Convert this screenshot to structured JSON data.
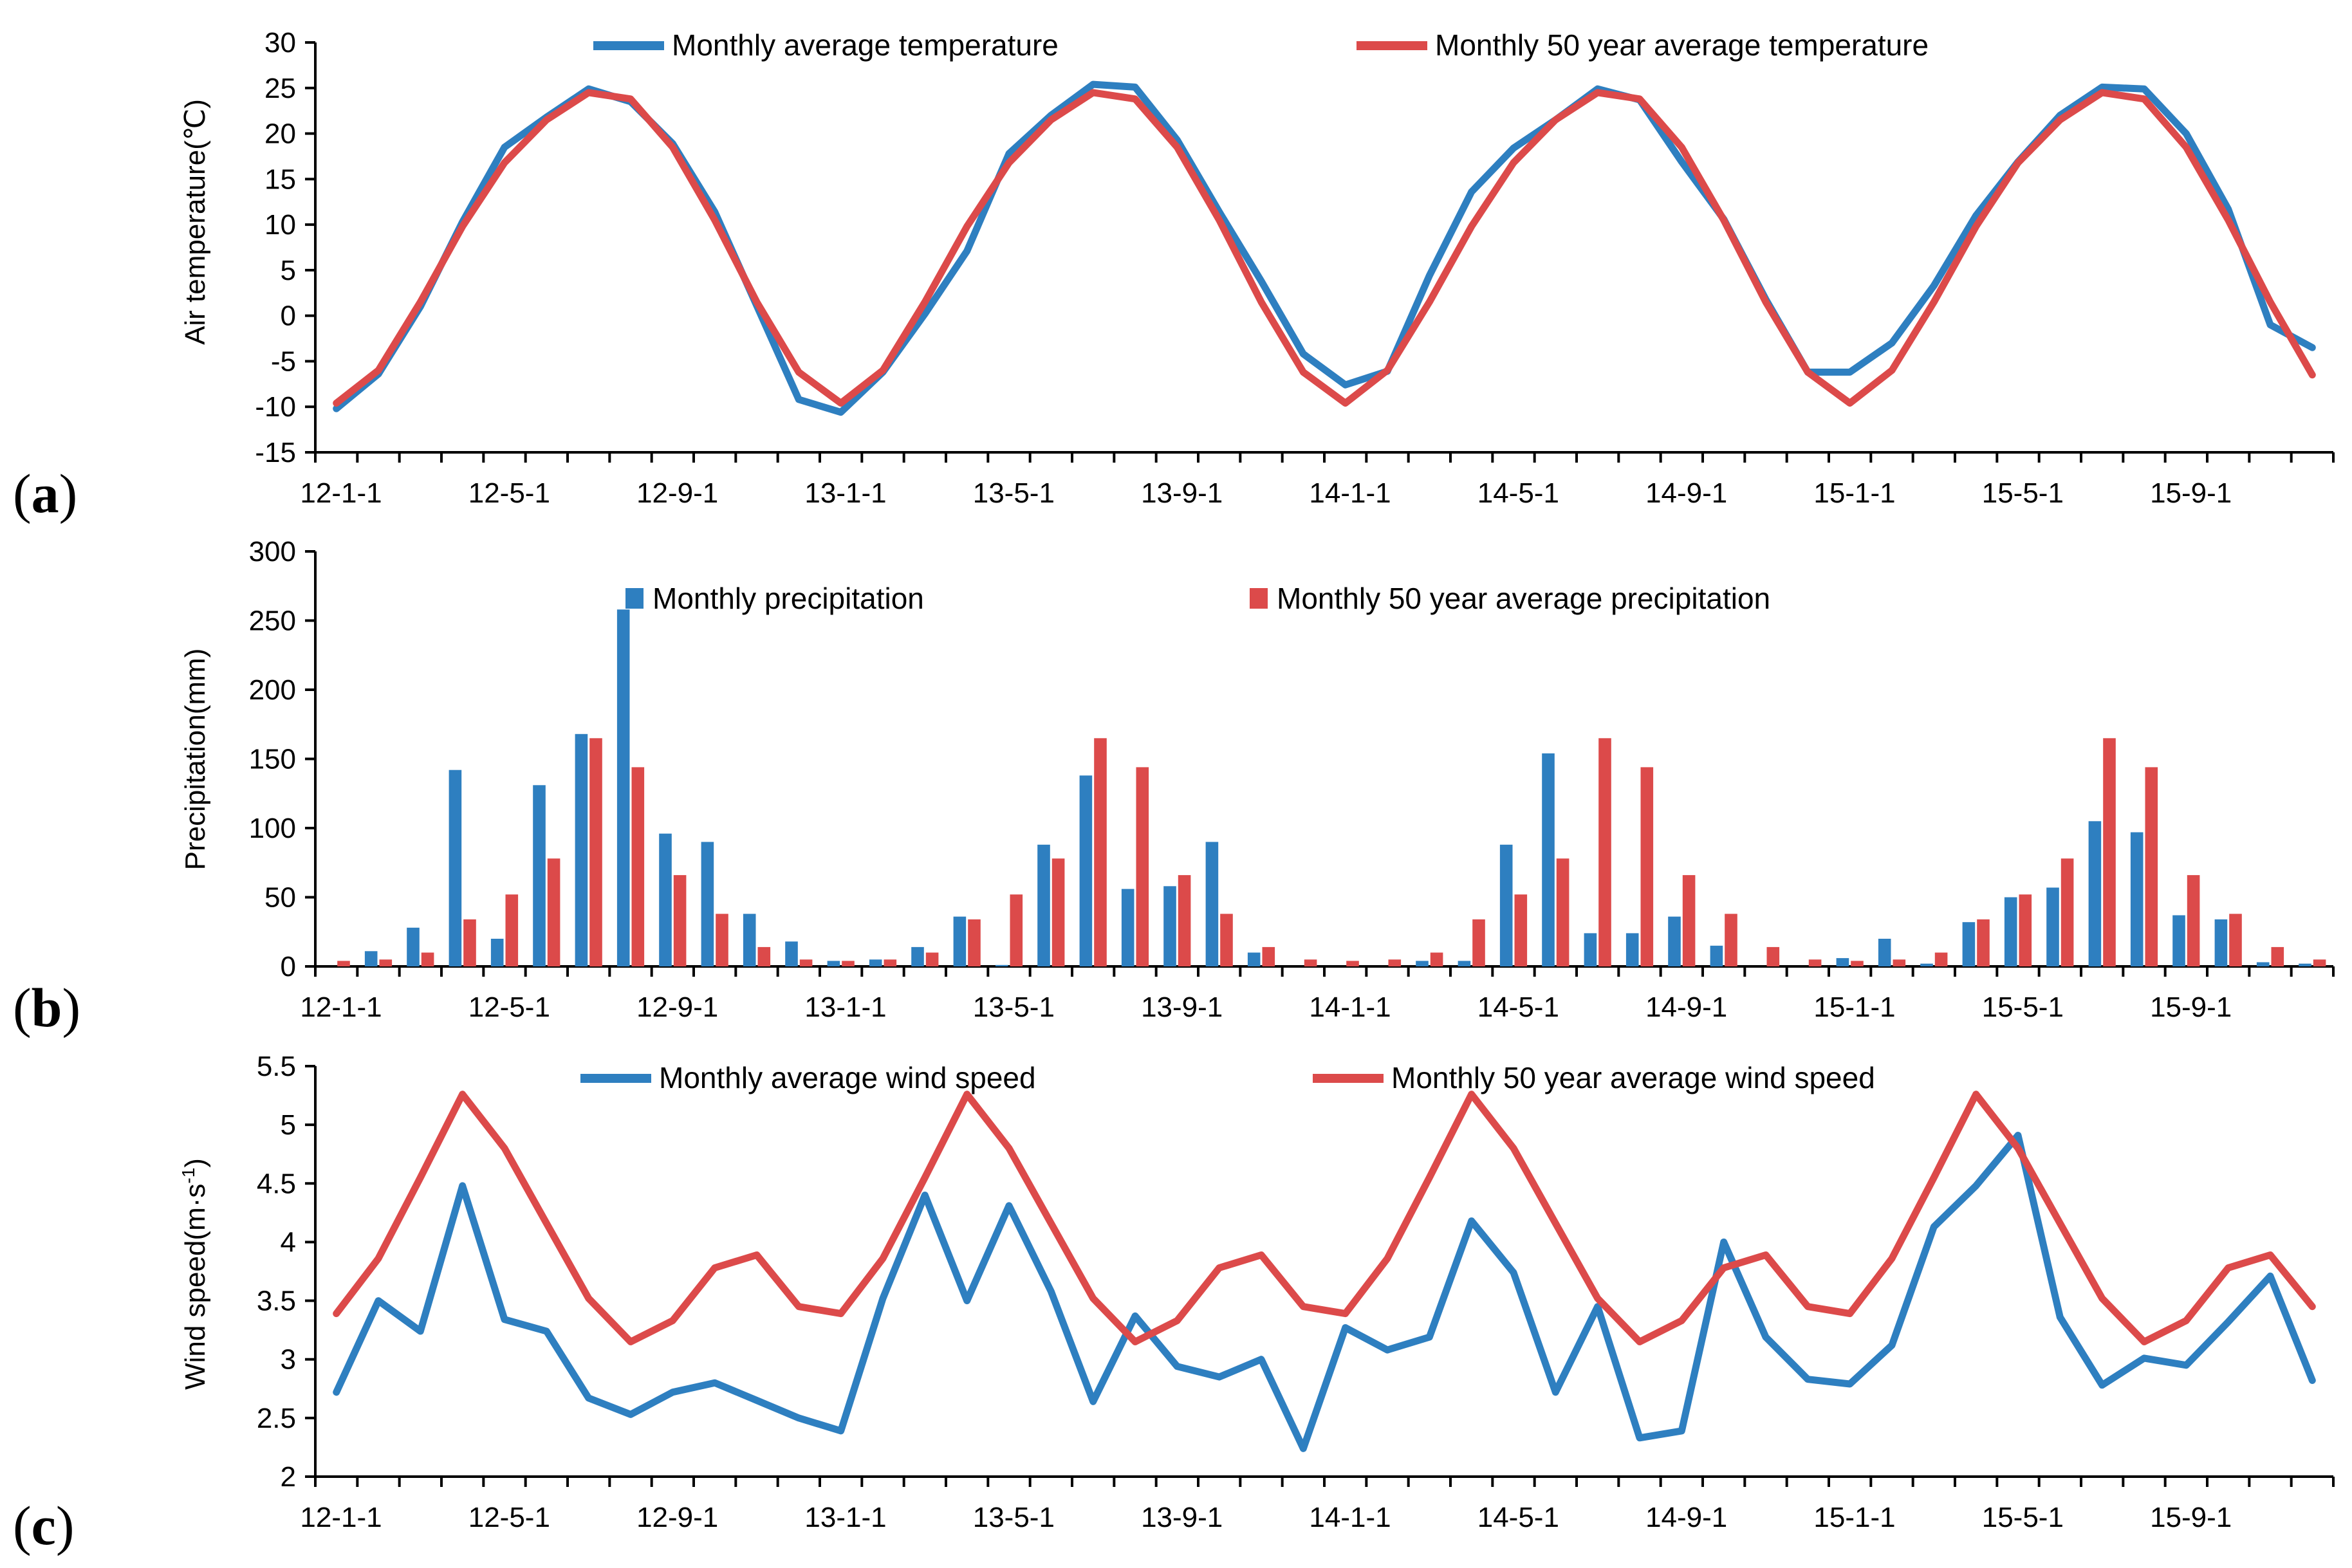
{
  "panels": [
    {
      "label_open": "(",
      "label_letter": "a",
      "label_close": ")"
    },
    {
      "label_open": "(",
      "label_letter": "b",
      "label_close": ")"
    },
    {
      "label_open": "(",
      "label_letter": "c",
      "label_close": ")"
    }
  ],
  "colors": {
    "blue": "#2e7fc0",
    "red": "#dc4a4a",
    "axis": "#000000"
  },
  "chart_data": [
    {
      "type": "line",
      "ylabel": "Air temperature(℃)",
      "xlabel": "",
      "ylim": [
        -15,
        30
      ],
      "yticks": [
        30,
        25,
        20,
        15,
        10,
        5,
        0,
        -5,
        -10,
        -15
      ],
      "legend_position": "top",
      "xtick_labels": [
        "12-1-1",
        "12-5-1",
        "12-9-1",
        "13-1-1",
        "13-5-1",
        "13-9-1",
        "14-1-1",
        "14-5-1",
        "14-9-1",
        "15-1-1",
        "15-5-1",
        "15-9-1"
      ],
      "series": [
        {
          "name": "Monthly average temperature",
          "color": "blue",
          "values": [
            -10.2,
            -6.4,
            1.0,
            10.3,
            18.5,
            21.8,
            24.9,
            23.5,
            18.9,
            11.4,
            1.1,
            -9.2,
            -10.6,
            -6.2,
            0.2,
            7.1,
            17.8,
            22.0,
            25.4,
            25.1,
            19.3,
            11.4,
            3.8,
            -4.2,
            -7.6,
            -6.1,
            4.4,
            13.6,
            18.4,
            21.5,
            24.9,
            23.7,
            16.9,
            10.6,
            1.8,
            -6.2,
            -6.2,
            -3.0,
            3.3,
            11.0,
            16.9,
            22.0,
            25.1,
            24.9,
            20.0,
            11.7,
            -1.0,
            -3.5
          ]
        },
        {
          "name": "Monthly 50 year average temperature",
          "color": "red",
          "values": [
            -9.6,
            -6.0,
            1.5,
            9.8,
            16.8,
            21.5,
            24.5,
            23.8,
            18.5,
            10.5,
            1.5,
            -6.2,
            -9.6,
            -6.0,
            1.5,
            9.8,
            16.8,
            21.5,
            24.5,
            23.8,
            18.5,
            10.5,
            1.5,
            -6.2,
            -9.6,
            -6.0,
            1.5,
            9.8,
            16.8,
            21.5,
            24.5,
            23.8,
            18.5,
            10.5,
            1.5,
            -6.2,
            -9.6,
            -6.0,
            1.5,
            9.8,
            16.8,
            21.5,
            24.5,
            23.8,
            18.5,
            10.5,
            1.5,
            -6.5
          ]
        }
      ]
    },
    {
      "type": "bar",
      "ylabel": "Precipitation(mm)",
      "xlabel": "",
      "ylim": [
        0,
        300
      ],
      "yticks": [
        300,
        250,
        200,
        150,
        100,
        50,
        0
      ],
      "legend_position": "top",
      "xtick_labels": [
        "12-1-1",
        "12-5-1",
        "12-9-1",
        "13-1-1",
        "13-5-1",
        "13-9-1",
        "14-1-1",
        "14-5-1",
        "14-9-1",
        "15-1-1",
        "15-5-1",
        "15-9-1"
      ],
      "series": [
        {
          "name": "Monthly precipitation",
          "color": "blue",
          "values": [
            0,
            11,
            28,
            142,
            20,
            131,
            168,
            258,
            96,
            90,
            38,
            18,
            4,
            5,
            14,
            36,
            1,
            88,
            138,
            56,
            58,
            90,
            10,
            0,
            0,
            0,
            4,
            4,
            88,
            154,
            24,
            24,
            36,
            15,
            0,
            0,
            6,
            20,
            2,
            32,
            50,
            57,
            105,
            97,
            37,
            34,
            3,
            2
          ]
        },
        {
          "name": "Monthly 50 year average precipitation",
          "color": "red",
          "values": [
            4,
            5,
            10,
            34,
            52,
            78,
            165,
            144,
            66,
            38,
            14,
            5,
            4,
            5,
            10,
            34,
            52,
            78,
            165,
            144,
            66,
            38,
            14,
            5,
            4,
            5,
            10,
            34,
            52,
            78,
            165,
            144,
            66,
            38,
            14,
            5,
            4,
            5,
            10,
            34,
            52,
            78,
            165,
            144,
            66,
            38,
            14,
            5
          ]
        }
      ]
    },
    {
      "type": "line",
      "ylabel": "Wind speed(m·s",
      "ylabel_sup": "-1",
      "ylabel_close": ")",
      "xlabel": "",
      "ylim": [
        2,
        5.5
      ],
      "yticks": [
        "5.5",
        "5",
        "4.5",
        "4",
        "3.5",
        "3",
        "2.5",
        "2"
      ],
      "legend_position": "top",
      "xtick_labels": [
        "12-1-1",
        "12-5-1",
        "12-9-1",
        "13-1-1",
        "13-5-1",
        "13-9-1",
        "14-1-1",
        "14-5-1",
        "14-9-1",
        "15-1-1",
        "15-5-1",
        "15-9-1"
      ],
      "series": [
        {
          "name": "Monthly average wind speed",
          "color": "blue",
          "values": [
            2.72,
            3.5,
            3.24,
            4.48,
            3.34,
            3.24,
            2.67,
            2.53,
            2.72,
            2.8,
            2.65,
            2.5,
            2.39,
            3.52,
            4.4,
            3.5,
            4.31,
            3.58,
            2.64,
            3.37,
            2.94,
            2.85,
            3.0,
            2.24,
            3.27,
            3.08,
            3.19,
            4.18,
            3.74,
            2.72,
            3.45,
            2.33,
            2.39,
            4.0,
            3.19,
            2.83,
            2.79,
            3.12,
            4.13,
            4.48,
            4.91,
            3.36,
            2.78,
            3.01,
            2.95,
            3.32,
            3.71,
            2.82
          ]
        },
        {
          "name": "Monthly 50 year average wind speed",
          "color": "red",
          "values": [
            3.39,
            3.86,
            4.55,
            5.26,
            4.8,
            4.16,
            3.52,
            3.15,
            3.33,
            3.78,
            3.89,
            3.45,
            3.39,
            3.86,
            4.55,
            5.26,
            4.8,
            4.16,
            3.52,
            3.15,
            3.33,
            3.78,
            3.89,
            3.45,
            3.39,
            3.86,
            4.55,
            5.26,
            4.8,
            4.16,
            3.52,
            3.15,
            3.33,
            3.78,
            3.89,
            3.45,
            3.39,
            3.86,
            4.55,
            5.26,
            4.8,
            4.16,
            3.52,
            3.15,
            3.33,
            3.78,
            3.89,
            3.45
          ]
        }
      ]
    }
  ]
}
